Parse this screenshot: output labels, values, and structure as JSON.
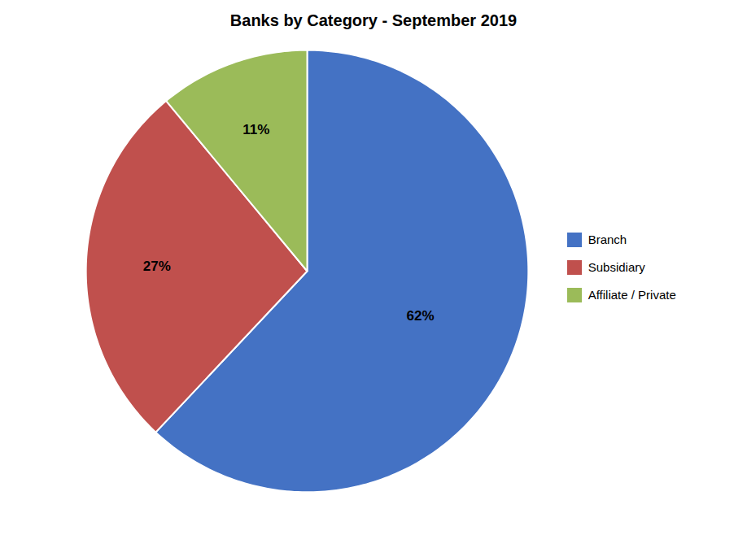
{
  "chart_data": {
    "type": "pie",
    "title": "Banks by Category - September 2019",
    "categories": [
      "Branch",
      "Subsidiary",
      "Affiliate / Private"
    ],
    "values": [
      62,
      27,
      11
    ],
    "colors": [
      "#4472C4",
      "#C0504D",
      "#9BBB59"
    ],
    "data_labels": true,
    "value_labels": [
      "62%",
      "27%",
      "11%"
    ],
    "legend": "right"
  }
}
